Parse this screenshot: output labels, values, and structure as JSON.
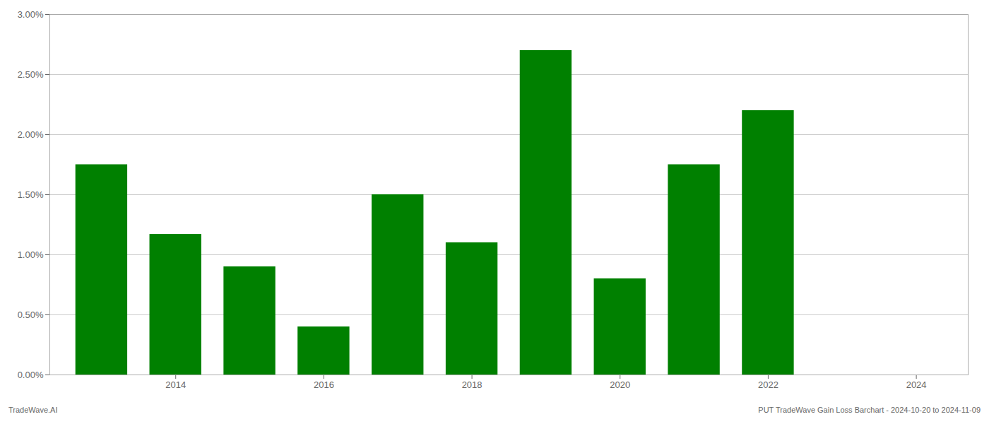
{
  "chart_data": {
    "type": "bar",
    "x": [
      2013,
      2014,
      2015,
      2016,
      2017,
      2018,
      2019,
      2020,
      2021,
      2022,
      2023
    ],
    "values": [
      0.0175,
      0.0117,
      0.009,
      0.004,
      0.015,
      0.011,
      0.027,
      0.008,
      0.0175,
      0.022,
      0.0
    ],
    "color": "#008000",
    "xlim": [
      2012.3,
      2024.7
    ],
    "xticks": [
      2014,
      2016,
      2018,
      2020,
      2022,
      2024
    ],
    "ylim": [
      0,
      0.03
    ],
    "yticks": [
      {
        "value": 0.0,
        "label": "0.00%"
      },
      {
        "value": 0.005,
        "label": "0.50%"
      },
      {
        "value": 0.01,
        "label": "1.00%"
      },
      {
        "value": 0.015,
        "label": "1.50%"
      },
      {
        "value": 0.02,
        "label": "2.00%"
      },
      {
        "value": 0.025,
        "label": "2.50%"
      },
      {
        "value": 0.03,
        "label": "3.00%"
      }
    ],
    "grid": true,
    "annotations": [
      "TradeWave.AI",
      "PUT TradeWave Gain Loss Barchart - 2024-10-20 to 2024-11-09"
    ]
  }
}
